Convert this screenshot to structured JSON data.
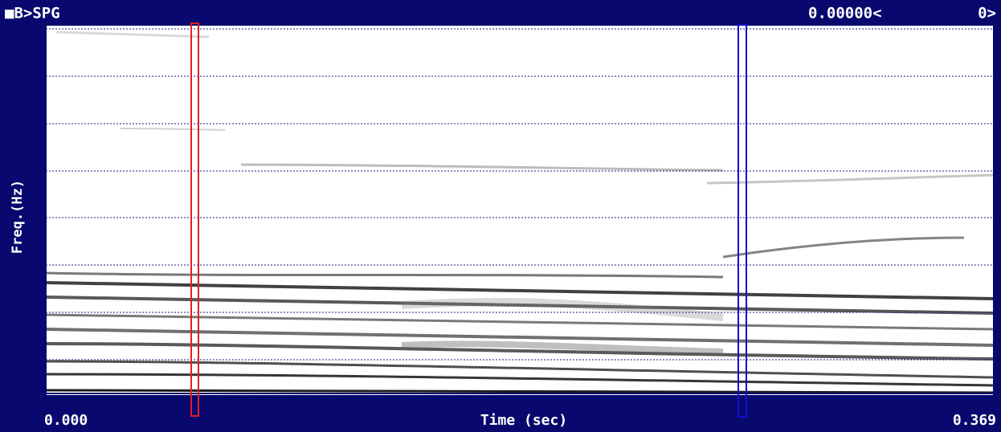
{
  "header": {
    "title": "■B>SPG",
    "cursor_value": "0.00000<",
    "cursor_index": "0>"
  },
  "axes": {
    "y_label": "Freq.(Hz)",
    "y_max": "4003",
    "y_min": "0",
    "x_label": "Time (sec)",
    "x_min": "0.000",
    "x_max": "0.369"
  }
}
